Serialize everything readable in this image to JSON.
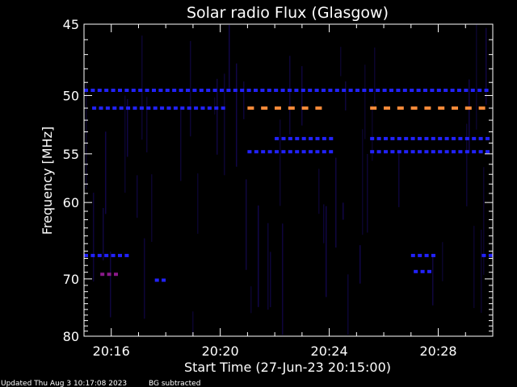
{
  "chart_data": {
    "type": "heatmap",
    "title": "Solar radio Flux (Glasgow)",
    "xlabel": "Start Time (27-Jun-23 20:15:00)",
    "ylabel": "Frequency [MHz]",
    "x_ticks": [
      "20:16",
      "20:20",
      "20:24",
      "20:28"
    ],
    "x_tick_minutes": [
      1,
      5,
      9,
      13
    ],
    "x_range_minutes": [
      0,
      15
    ],
    "y_ticks": [
      45,
      50,
      55,
      60,
      70,
      80
    ],
    "y_range_mhz": [
      45,
      80
    ],
    "y_scale": "reciprocal",
    "colormap": [
      "#000000",
      "#1a0a6e",
      "#2222ff",
      "#8a1a8a",
      "#ff8c3a"
    ],
    "background": "#000000",
    "emission_features": [
      {
        "freq_mhz": 49.6,
        "t_start": 0.0,
        "t_end": 15.0,
        "intensity": 0.45
      },
      {
        "freq_mhz": 51.0,
        "t_start": 0.3,
        "t_end": 5.2,
        "intensity": 0.6
      },
      {
        "freq_mhz": 51.0,
        "t_start": 6.0,
        "t_end": 9.2,
        "intensity": 1.0
      },
      {
        "freq_mhz": 51.0,
        "t_start": 10.5,
        "t_end": 15.0,
        "intensity": 1.0
      },
      {
        "freq_mhz": 53.6,
        "t_start": 7.0,
        "t_end": 9.2,
        "intensity": 0.5
      },
      {
        "freq_mhz": 53.6,
        "t_start": 10.5,
        "t_end": 15.0,
        "intensity": 0.5
      },
      {
        "freq_mhz": 54.8,
        "t_start": 6.0,
        "t_end": 9.2,
        "intensity": 0.55
      },
      {
        "freq_mhz": 54.8,
        "t_start": 10.5,
        "t_end": 15.0,
        "intensity": 0.55
      },
      {
        "freq_mhz": 66.6,
        "t_start": 0.0,
        "t_end": 1.8,
        "intensity": 0.55
      },
      {
        "freq_mhz": 66.6,
        "t_start": 12.0,
        "t_end": 12.9,
        "intensity": 0.6
      },
      {
        "freq_mhz": 66.6,
        "t_start": 14.6,
        "t_end": 15.0,
        "intensity": 0.5
      },
      {
        "freq_mhz": 69.3,
        "t_start": 0.6,
        "t_end": 1.4,
        "intensity": 0.75
      },
      {
        "freq_mhz": 68.9,
        "t_start": 12.1,
        "t_end": 12.9,
        "intensity": 0.55
      },
      {
        "freq_mhz": 70.2,
        "t_start": 2.6,
        "t_end": 3.2,
        "intensity": 0.5
      }
    ]
  },
  "footer": {
    "updated": "Updated Thu Aug  3 10:17:08 2023",
    "note": "BG subtracted"
  }
}
